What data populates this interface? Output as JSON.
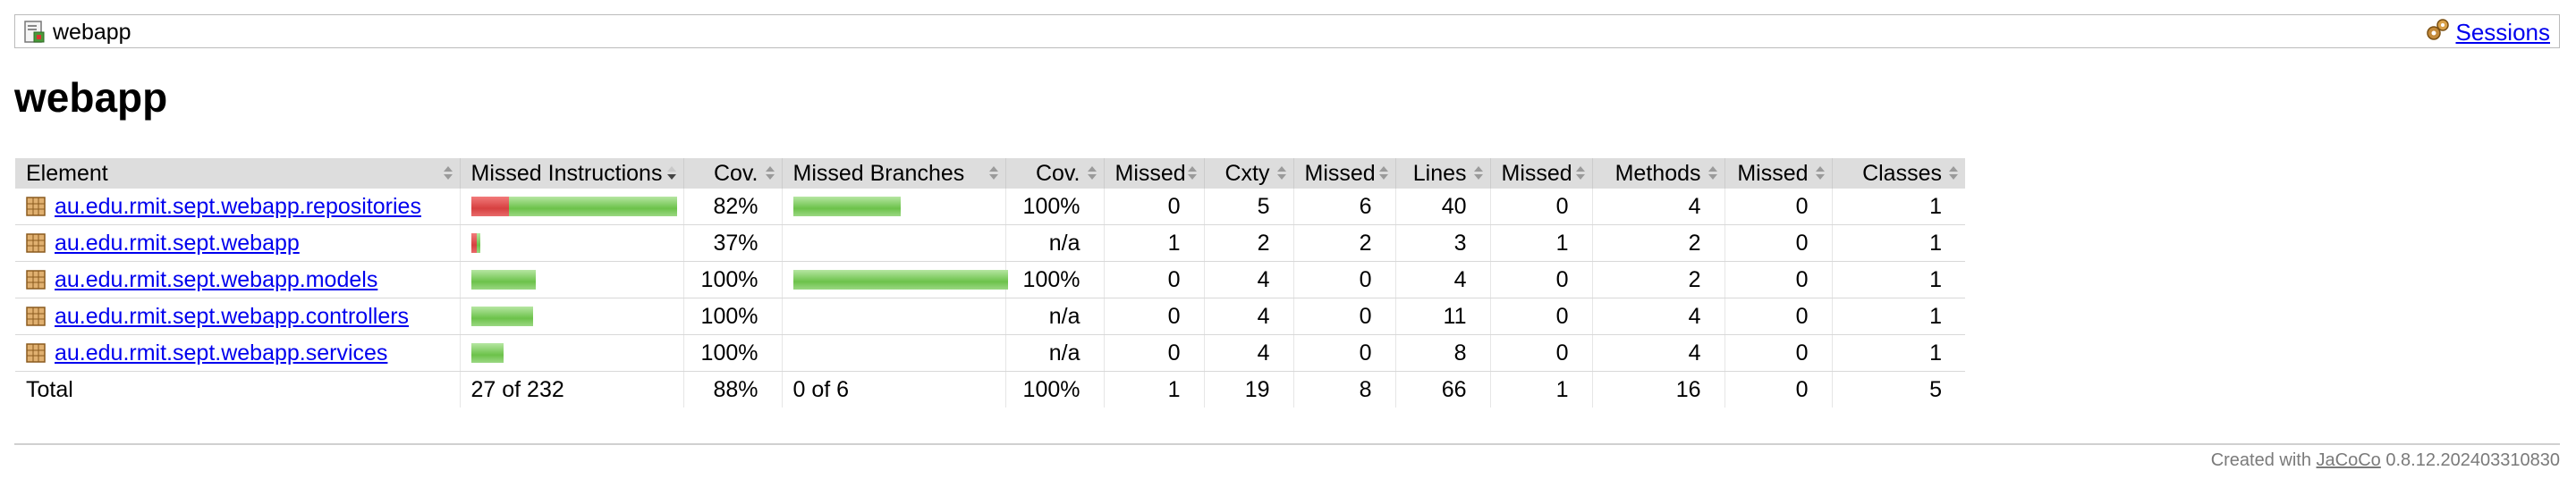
{
  "breadcrumb": {
    "label": "webapp",
    "sessions_label": "Sessions"
  },
  "page_title": "webapp",
  "table": {
    "headers": {
      "element": "Element",
      "missed_instructions": "Missed Instructions",
      "cov1": "Cov.",
      "missed_branches": "Missed Branches",
      "cov2": "Cov.",
      "missed_cxty": "Missed",
      "cxty": "Cxty",
      "missed_lines": "Missed",
      "lines": "Lines",
      "missed_methods": "Missed",
      "methods": "Methods",
      "missed_classes": "Missed",
      "classes": "Classes"
    },
    "rows": [
      {
        "name": "au.edu.rmit.sept.webapp.repositories",
        "instr_cov": "82%",
        "branch_cov": "100%",
        "missed_cxty": "0",
        "cxty": "5",
        "missed_lines": "6",
        "lines": "40",
        "missed_methods": "0",
        "methods": "4",
        "missed_classes": "0",
        "classes": "1"
      },
      {
        "name": "au.edu.rmit.sept.webapp",
        "instr_cov": "37%",
        "branch_cov": "n/a",
        "missed_cxty": "1",
        "cxty": "2",
        "missed_lines": "2",
        "lines": "3",
        "missed_methods": "1",
        "methods": "2",
        "missed_classes": "0",
        "classes": "1"
      },
      {
        "name": "au.edu.rmit.sept.webapp.models",
        "instr_cov": "100%",
        "branch_cov": "100%",
        "missed_cxty": "0",
        "cxty": "4",
        "missed_lines": "0",
        "lines": "4",
        "missed_methods": "0",
        "methods": "2",
        "missed_classes": "0",
        "classes": "1"
      },
      {
        "name": "au.edu.rmit.sept.webapp.controllers",
        "instr_cov": "100%",
        "branch_cov": "n/a",
        "missed_cxty": "0",
        "cxty": "4",
        "missed_lines": "0",
        "lines": "11",
        "missed_methods": "0",
        "methods": "4",
        "missed_classes": "0",
        "classes": "1"
      },
      {
        "name": "au.edu.rmit.sept.webapp.services",
        "instr_cov": "100%",
        "branch_cov": "n/a",
        "missed_cxty": "0",
        "cxty": "4",
        "missed_lines": "0",
        "lines": "8",
        "missed_methods": "0",
        "methods": "4",
        "missed_classes": "0",
        "classes": "1"
      }
    ],
    "bars": [
      {
        "instr_missed": 0.175,
        "instr_covered": 0.785,
        "branch_missed": 0,
        "branch_covered": 0.5
      },
      {
        "instr_missed": 0.025,
        "instr_covered": 0.02,
        "branch_missed": 0,
        "branch_covered": 0
      },
      {
        "instr_missed": 0,
        "instr_covered": 0.3,
        "branch_missed": 0,
        "branch_covered": 1.0
      },
      {
        "instr_missed": 0,
        "instr_covered": 0.29,
        "branch_missed": 0,
        "branch_covered": 0
      },
      {
        "instr_missed": 0,
        "instr_covered": 0.15,
        "branch_missed": 0,
        "branch_covered": 0
      }
    ],
    "total": {
      "label": "Total",
      "instr": "27 of 232",
      "instr_cov": "88%",
      "branch": "0 of 6",
      "branch_cov": "100%",
      "missed_cxty": "1",
      "cxty": "19",
      "missed_lines": "8",
      "lines": "66",
      "missed_methods": "1",
      "methods": "16",
      "missed_classes": "0",
      "classes": "5"
    }
  },
  "footer": {
    "prefix": "Created with",
    "link": "JaCoCo",
    "version": "0.8.12.202403310830"
  },
  "colors": {
    "bar_missed": "#d64040",
    "bar_covered": "#6cc24a",
    "header_bg": "#dddddd",
    "link": "#0000ee"
  }
}
